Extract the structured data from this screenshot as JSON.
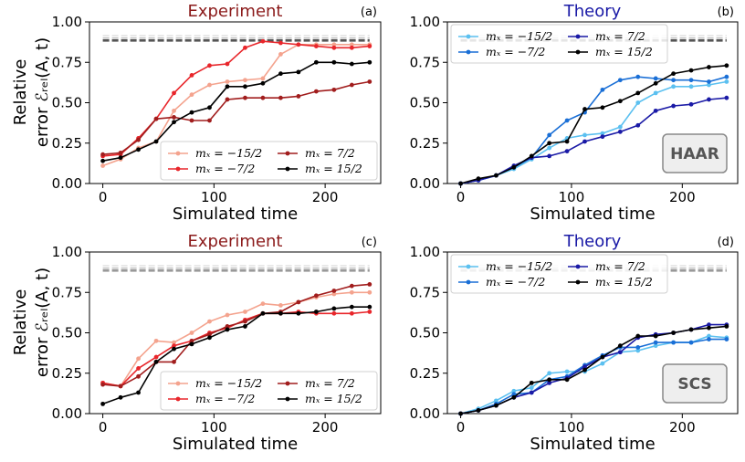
{
  "ylabel_line1": "Relative",
  "ylabel_line2": "error ℰᵣₑₗ(A, t)",
  "chart_data": [
    {
      "type": "line",
      "panel_label": "(a)",
      "title": "Experiment",
      "xlabel": "Simulated time",
      "xlim": [
        -12,
        250
      ],
      "ylim": [
        0,
        1
      ],
      "xticks": [
        "0",
        "100",
        "200"
      ],
      "yticks": [
        "0.00",
        "0.25",
        "0.50",
        "0.75",
        "1.00"
      ],
      "x": [
        0,
        16,
        32,
        48,
        64,
        80,
        96,
        112,
        128,
        144,
        160,
        176,
        192,
        208,
        224,
        240
      ],
      "reference_lines": [
        0.915,
        0.9,
        0.885
      ],
      "badge": "",
      "legend_position": "lower-right",
      "series": [
        {
          "name": "mₓ = −15/2",
          "color": "#f4a38e",
          "values": [
            0.11,
            0.15,
            0.22,
            0.26,
            0.45,
            0.55,
            0.61,
            0.63,
            0.64,
            0.65,
            0.8,
            0.86,
            0.86,
            0.86,
            0.86,
            0.86
          ]
        },
        {
          "name": "mₓ = −7/2",
          "color": "#e8262b",
          "values": [
            0.17,
            0.18,
            0.28,
            0.4,
            0.56,
            0.67,
            0.73,
            0.74,
            0.84,
            0.88,
            0.87,
            0.86,
            0.85,
            0.84,
            0.84,
            0.85
          ]
        },
        {
          "name": "mₓ = 7/2",
          "color": "#a11d1d",
          "values": [
            0.18,
            0.19,
            0.27,
            0.4,
            0.41,
            0.39,
            0.39,
            0.52,
            0.53,
            0.53,
            0.53,
            0.54,
            0.57,
            0.58,
            0.61,
            0.63
          ]
        },
        {
          "name": "mₓ = 15/2",
          "color": "#000000",
          "values": [
            0.14,
            0.16,
            0.21,
            0.26,
            0.38,
            0.44,
            0.47,
            0.6,
            0.6,
            0.62,
            0.68,
            0.69,
            0.75,
            0.75,
            0.74,
            0.75
          ]
        }
      ]
    },
    {
      "type": "line",
      "panel_label": "(b)",
      "title": "Theory",
      "xlabel": "Simulated time",
      "xlim": [
        -12,
        250
      ],
      "ylim": [
        0,
        1
      ],
      "xticks": [
        "0",
        "100",
        "200"
      ],
      "yticks": [
        "0.00",
        "0.25",
        "0.50",
        "0.75",
        "1.00"
      ],
      "x": [
        0,
        16,
        32,
        48,
        64,
        80,
        96,
        112,
        128,
        144,
        160,
        176,
        192,
        208,
        224,
        240
      ],
      "reference_lines": [
        0.915,
        0.9,
        0.885
      ],
      "badge": "HAAR",
      "legend_position": "top-left",
      "series": [
        {
          "name": "mₓ = −15/2",
          "color": "#5bc0f0",
          "values": [
            0.0,
            0.02,
            0.05,
            0.09,
            0.15,
            0.22,
            0.28,
            0.3,
            0.31,
            0.35,
            0.5,
            0.56,
            0.6,
            0.6,
            0.61,
            0.63
          ]
        },
        {
          "name": "mₓ = −7/2",
          "color": "#1a6fd6",
          "values": [
            0.0,
            0.02,
            0.05,
            0.1,
            0.16,
            0.3,
            0.39,
            0.44,
            0.58,
            0.64,
            0.66,
            0.65,
            0.64,
            0.64,
            0.63,
            0.66
          ]
        },
        {
          "name": "mₓ = 7/2",
          "color": "#1a1aa6",
          "values": [
            0.0,
            0.02,
            0.05,
            0.11,
            0.16,
            0.17,
            0.2,
            0.26,
            0.29,
            0.32,
            0.36,
            0.45,
            0.48,
            0.49,
            0.52,
            0.53
          ]
        },
        {
          "name": "mₓ = 15/2",
          "color": "#000000",
          "values": [
            0.0,
            0.03,
            0.05,
            0.1,
            0.17,
            0.25,
            0.26,
            0.46,
            0.47,
            0.51,
            0.56,
            0.62,
            0.68,
            0.7,
            0.72,
            0.73
          ]
        }
      ]
    },
    {
      "type": "line",
      "panel_label": "(c)",
      "title": "Experiment",
      "xlabel": "Simulated time",
      "xlim": [
        -12,
        250
      ],
      "ylim": [
        0,
        1
      ],
      "xticks": [
        "0",
        "100",
        "200"
      ],
      "yticks": [
        "0.00",
        "0.25",
        "0.50",
        "0.75",
        "1.00"
      ],
      "x": [
        0,
        16,
        32,
        48,
        64,
        80,
        96,
        112,
        128,
        144,
        160,
        176,
        192,
        208,
        224,
        240
      ],
      "reference_lines": [
        0.915,
        0.9,
        0.885
      ],
      "badge": "",
      "legend_position": "lower-right",
      "series": [
        {
          "name": "mₓ = −15/2",
          "color": "#f4a38e",
          "values": [
            0.19,
            0.17,
            0.34,
            0.45,
            0.44,
            0.5,
            0.57,
            0.61,
            0.63,
            0.68,
            0.67,
            0.69,
            0.72,
            0.74,
            0.75,
            0.75
          ]
        },
        {
          "name": "mₓ = −7/2",
          "color": "#e8262b",
          "values": [
            0.19,
            0.17,
            0.28,
            0.35,
            0.42,
            0.45,
            0.5,
            0.53,
            0.58,
            0.62,
            0.62,
            0.63,
            0.62,
            0.62,
            0.62,
            0.63
          ]
        },
        {
          "name": "mₓ = 7/2",
          "color": "#a11d1d",
          "values": [
            0.18,
            0.17,
            0.23,
            0.32,
            0.32,
            0.45,
            0.49,
            0.54,
            0.57,
            0.62,
            0.63,
            0.69,
            0.73,
            0.76,
            0.79,
            0.8
          ]
        },
        {
          "name": "mₓ = 15/2",
          "color": "#000000",
          "values": [
            0.06,
            0.1,
            0.13,
            0.32,
            0.4,
            0.43,
            0.47,
            0.52,
            0.54,
            0.62,
            0.62,
            0.62,
            0.63,
            0.65,
            0.66,
            0.66
          ]
        }
      ]
    },
    {
      "type": "line",
      "panel_label": "(d)",
      "title": "Theory",
      "xlabel": "Simulated time",
      "xlim": [
        -12,
        250
      ],
      "ylim": [
        0,
        1
      ],
      "xticks": [
        "0",
        "100",
        "200"
      ],
      "yticks": [
        "0.00",
        "0.25",
        "0.50",
        "0.75",
        "1.00"
      ],
      "x": [
        0,
        16,
        32,
        48,
        64,
        80,
        96,
        112,
        128,
        144,
        160,
        176,
        192,
        208,
        224,
        240
      ],
      "reference_lines": [
        0.915,
        0.9,
        0.885
      ],
      "badge": "SCS",
      "legend_position": "top-left",
      "series": [
        {
          "name": "mₓ = −15/2",
          "color": "#5bc0f0",
          "values": [
            0.0,
            0.03,
            0.08,
            0.14,
            0.16,
            0.25,
            0.26,
            0.26,
            0.31,
            0.38,
            0.39,
            0.42,
            0.44,
            0.44,
            0.48,
            0.47
          ]
        },
        {
          "name": "mₓ = −7/2",
          "color": "#1a6fd6",
          "values": [
            0.0,
            0.02,
            0.06,
            0.12,
            0.13,
            0.21,
            0.23,
            0.3,
            0.36,
            0.41,
            0.41,
            0.44,
            0.44,
            0.44,
            0.46,
            0.46
          ]
        },
        {
          "name": "mₓ = 7/2",
          "color": "#1a1aa6",
          "values": [
            0.0,
            0.02,
            0.05,
            0.1,
            0.13,
            0.19,
            0.22,
            0.29,
            0.35,
            0.38,
            0.47,
            0.49,
            0.5,
            0.52,
            0.55,
            0.55
          ]
        },
        {
          "name": "mₓ = 15/2",
          "color": "#000000",
          "values": [
            0.0,
            0.02,
            0.05,
            0.1,
            0.19,
            0.21,
            0.21,
            0.27,
            0.35,
            0.42,
            0.48,
            0.48,
            0.5,
            0.52,
            0.53,
            0.54
          ]
        }
      ]
    }
  ]
}
